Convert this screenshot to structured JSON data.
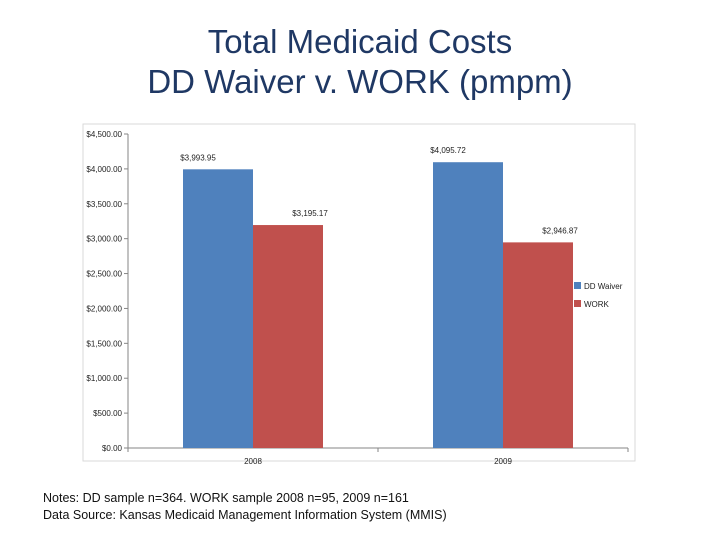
{
  "title": {
    "line1": "Total Medicaid Costs",
    "line2": "DD Waiver v. WORK (pmpm)"
  },
  "chart_data": {
    "type": "bar",
    "categories": [
      "2008",
      "2009"
    ],
    "series": [
      {
        "name": "DD Waiver",
        "color": "#4f81bd",
        "values": [
          3993.95,
          4095.72
        ],
        "labels": [
          "$3,993.95",
          "$4,095.72"
        ]
      },
      {
        "name": "WORK",
        "color": "#c0504d",
        "values": [
          3195.17,
          2946.87
        ],
        "labels": [
          "$3,195.17",
          "$2,946.87"
        ]
      }
    ],
    "ylim": [
      0,
      4500
    ],
    "yticks": [
      0,
      500,
      1000,
      1500,
      2000,
      2500,
      3000,
      3500,
      4000,
      4500
    ],
    "ytick_labels": [
      "$0.00",
      "$500.00",
      "$1,000.00",
      "$1,500.00",
      "$2,000.00",
      "$2,500.00",
      "$3,000.00",
      "$3,500.00",
      "$4,000.00",
      "$4,500.00"
    ],
    "grid": false,
    "legend_position": "right"
  },
  "notes": {
    "line1": "Notes: DD sample n=364. WORK sample 2008 n=95, 2009 n=161",
    "line2": "Data Source: Kansas Medicaid Management Information System (MMIS)"
  }
}
